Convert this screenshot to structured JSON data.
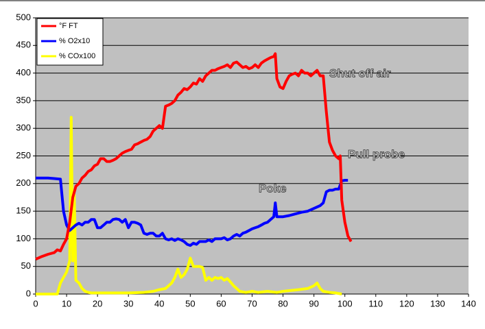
{
  "chart_data": {
    "type": "line",
    "xlim": [
      0,
      140
    ],
    "xticks": [
      0,
      10,
      20,
      30,
      40,
      50,
      60,
      70,
      80,
      90,
      100,
      110,
      120,
      130,
      140
    ],
    "ylim": [
      0,
      500
    ],
    "yticks": [
      0,
      50,
      100,
      150,
      200,
      250,
      300,
      350,
      400,
      450,
      500
    ],
    "grid": true,
    "legend": "top-left",
    "annotations": [
      "Shut off air",
      "Pull probe",
      "Poke"
    ],
    "series": [
      {
        "name": "°F FT",
        "color": "#ff0000",
        "x": [
          0,
          2,
          4,
          6,
          7,
          8,
          9,
          10,
          11,
          12,
          13,
          14,
          15,
          16,
          17,
          18,
          19,
          20,
          21,
          22,
          23,
          24,
          25,
          26,
          27,
          28,
          29,
          30,
          31,
          32,
          33,
          34,
          35,
          36,
          37,
          38,
          39,
          40,
          41,
          42,
          43,
          44,
          45,
          46,
          47,
          48,
          49,
          50,
          51,
          52,
          53,
          54,
          55,
          56,
          57,
          58,
          59,
          60,
          61,
          62,
          63,
          64,
          65,
          66,
          67,
          68,
          69,
          70,
          71,
          72,
          73,
          74,
          75,
          76,
          77,
          77.5,
          78,
          79,
          80,
          81,
          82,
          83,
          84,
          85,
          86,
          87,
          88,
          89,
          90,
          91,
          92,
          93,
          94,
          95,
          96,
          97,
          98,
          98.5,
          99,
          100,
          101,
          102
        ],
        "values": [
          63,
          68,
          72,
          75,
          80,
          78,
          90,
          100,
          130,
          175,
          195,
          200,
          210,
          215,
          222,
          225,
          232,
          235,
          245,
          245,
          240,
          240,
          242,
          245,
          250,
          255,
          258,
          260,
          262,
          270,
          272,
          275,
          278,
          280,
          285,
          295,
          300,
          305,
          300,
          340,
          342,
          345,
          350,
          360,
          365,
          372,
          370,
          375,
          382,
          380,
          390,
          385,
          395,
          400,
          405,
          405,
          408,
          410,
          412,
          415,
          410,
          418,
          420,
          415,
          410,
          412,
          408,
          410,
          415,
          410,
          418,
          422,
          425,
          428,
          430,
          435,
          390,
          375,
          372,
          385,
          395,
          398,
          400,
          395,
          405,
          400,
          400,
          395,
          400,
          405,
          395,
          395,
          330,
          275,
          260,
          250,
          245,
          250,
          170,
          130,
          105,
          95
        ]
      },
      {
        "name": "% O2x10",
        "color": "#0000ff",
        "x": [
          0,
          2,
          4,
          6,
          8,
          9,
          10,
          11,
          12,
          13,
          14,
          15,
          16,
          17,
          18,
          19,
          20,
          21,
          22,
          23,
          24,
          25,
          26,
          27,
          28,
          29,
          30,
          31,
          32,
          33,
          34,
          35,
          36,
          37,
          38,
          39,
          40,
          41,
          42,
          43,
          44,
          45,
          46,
          47,
          48,
          49,
          50,
          51,
          52,
          53,
          54,
          55,
          56,
          57,
          58,
          59,
          60,
          61,
          62,
          63,
          64,
          65,
          66,
          67,
          68,
          69,
          70,
          71,
          72,
          73,
          74,
          75,
          76,
          77,
          77.5,
          78,
          79,
          80,
          82,
          84,
          86,
          88,
          90,
          92,
          93,
          94,
          95,
          96,
          97,
          98,
          99,
          100,
          101
        ],
        "values": [
          210,
          210,
          210,
          209,
          208,
          150,
          125,
          115,
          120,
          125,
          128,
          125,
          130,
          130,
          135,
          135,
          120,
          120,
          125,
          130,
          130,
          135,
          136,
          135,
          130,
          135,
          120,
          130,
          130,
          128,
          125,
          110,
          108,
          110,
          110,
          105,
          105,
          110,
          100,
          98,
          100,
          97,
          100,
          98,
          95,
          90,
          88,
          92,
          90,
          95,
          95,
          95,
          98,
          95,
          100,
          100,
          100,
          102,
          98,
          100,
          105,
          108,
          105,
          110,
          112,
          115,
          118,
          120,
          122,
          125,
          128,
          130,
          135,
          140,
          165,
          140,
          140,
          140,
          142,
          145,
          148,
          150,
          155,
          160,
          165,
          185,
          188,
          188,
          190,
          190,
          205,
          206,
          206
        ]
      },
      {
        "name": "% COx100",
        "color": "#ffff00",
        "x": [
          0,
          2,
          4,
          6,
          7,
          8,
          9,
          10,
          11,
          11.5,
          12,
          12.5,
          13,
          14,
          15,
          16,
          17,
          18,
          20,
          25,
          30,
          35,
          38,
          40,
          42,
          44,
          45,
          46,
          47,
          48,
          49,
          50,
          51,
          52,
          53,
          54,
          55,
          56,
          57,
          58,
          59,
          60,
          61,
          62,
          63,
          64,
          65,
          66,
          68,
          70,
          72,
          75,
          78,
          80,
          85,
          88,
          90,
          91,
          92,
          93,
          95,
          97,
          99
        ],
        "values": [
          0,
          0,
          0,
          0,
          0,
          20,
          30,
          40,
          60,
          320,
          60,
          180,
          25,
          20,
          10,
          5,
          3,
          2,
          2,
          2,
          2,
          3,
          5,
          8,
          10,
          20,
          30,
          45,
          30,
          35,
          45,
          65,
          50,
          50,
          50,
          48,
          25,
          30,
          25,
          30,
          28,
          30,
          25,
          28,
          22,
          15,
          10,
          5,
          3,
          5,
          3,
          5,
          3,
          5,
          8,
          10,
          15,
          20,
          10,
          5,
          3,
          2,
          0
        ]
      }
    ]
  }
}
